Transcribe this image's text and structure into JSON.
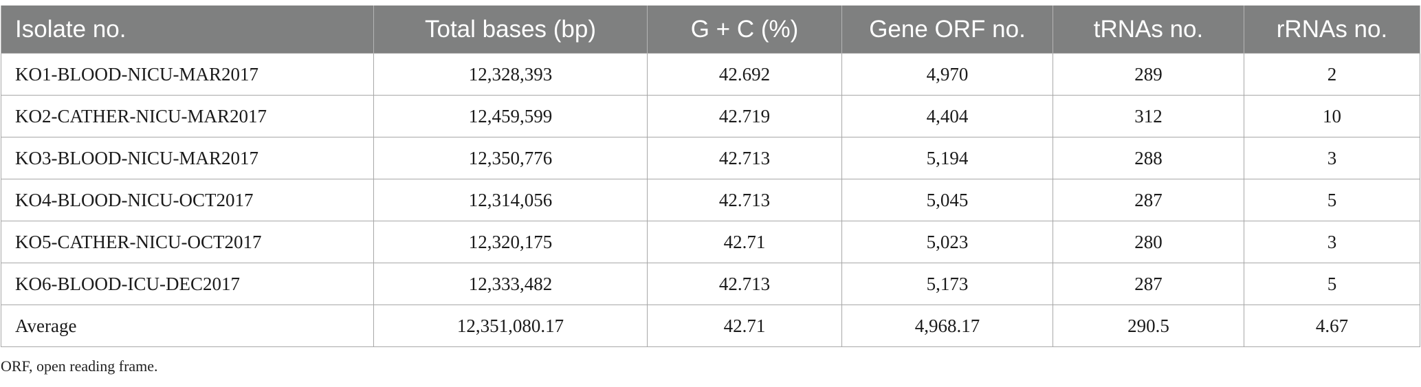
{
  "table": {
    "headers": [
      "Isolate no.",
      "Total bases (bp)",
      "G + C (%)",
      "Gene ORF no.",
      "tRNAs no.",
      "rRNAs no."
    ],
    "rows": [
      [
        "KO1-BLOOD-NICU-MAR2017",
        "12,328,393",
        "42.692",
        "4,970",
        "289",
        "2"
      ],
      [
        "KO2-CATHER-NICU-MAR2017",
        "12,459,599",
        "42.719",
        "4,404",
        "312",
        "10"
      ],
      [
        "KO3-BLOOD-NICU-MAR2017",
        "12,350,776",
        "42.713",
        "5,194",
        "288",
        "3"
      ],
      [
        "KO4-BLOOD-NICU-OCT2017",
        "12,314,056",
        "42.713",
        "5,045",
        "287",
        "5"
      ],
      [
        "KO5-CATHER-NICU-OCT2017",
        "12,320,175",
        "42.71",
        "5,023",
        "280",
        "3"
      ],
      [
        "KO6-BLOOD-ICU-DEC2017",
        "12,333,482",
        "42.713",
        "5,173",
        "287",
        "5"
      ],
      [
        "Average",
        "12,351,080.17",
        "42.71",
        "4,968.17",
        "290.5",
        "4.67"
      ]
    ],
    "header_bg": "#7f8080",
    "header_text_color": "#ffffff"
  },
  "footnote": "ORF, open reading frame."
}
